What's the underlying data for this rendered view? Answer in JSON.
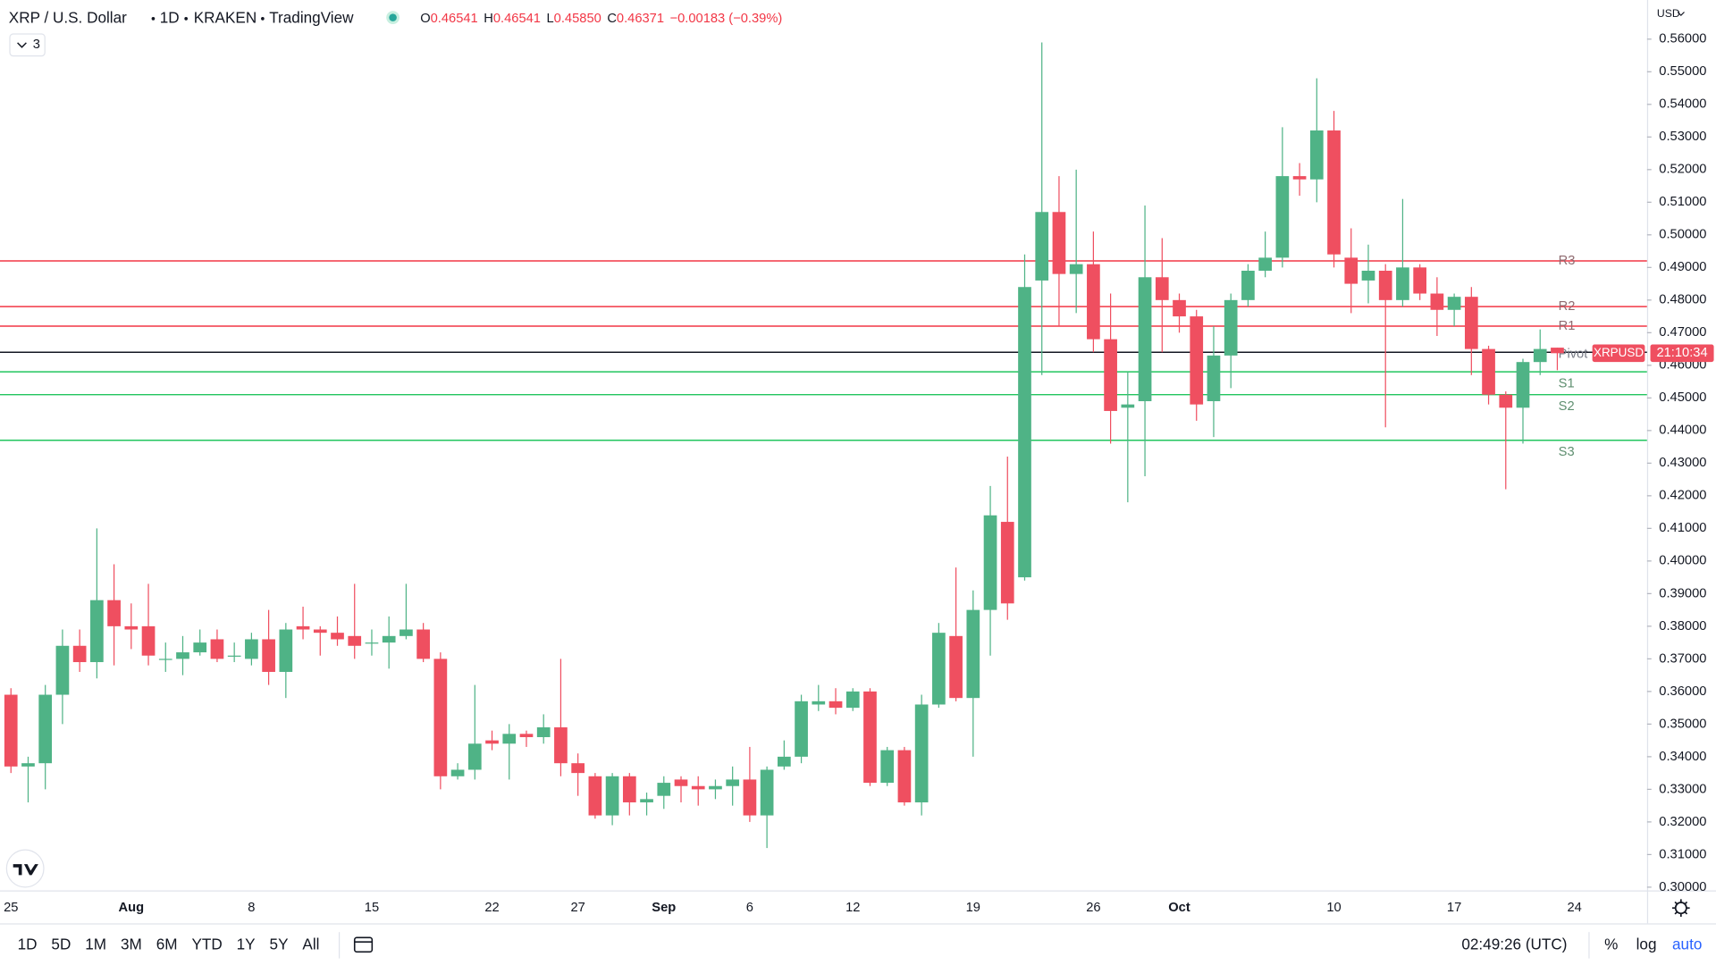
{
  "chart_data": {
    "type": "candlestick",
    "title": "XRP / U.S. Dollar",
    "interval": "1D",
    "exchange": "KRAKEN",
    "source": "TradingView",
    "legend": {
      "open_label": "O",
      "open": "0.46541",
      "high_label": "H",
      "high": "0.46541",
      "low_label": "L",
      "low": "0.45850",
      "close_label": "C",
      "close": "0.46371",
      "change": "−0.00183 (−0.39%)"
    },
    "indicator_count": "3",
    "currency": "USD",
    "symbol": "XRPUSD",
    "countdown": "21:10:34",
    "up_color": "#4fb386",
    "down_color": "#ef4f60",
    "x": [
      "07-25",
      "07-26",
      "07-27",
      "07-28",
      "07-29",
      "07-30",
      "07-31",
      "08-01",
      "08-02",
      "08-03",
      "08-04",
      "08-05",
      "08-06",
      "08-07",
      "08-08",
      "08-09",
      "08-10",
      "08-11",
      "08-12",
      "08-13",
      "08-14",
      "08-15",
      "08-16",
      "08-17",
      "08-18",
      "08-19",
      "08-20",
      "08-21",
      "08-22",
      "08-23",
      "08-24",
      "08-25",
      "08-26",
      "08-27",
      "08-28",
      "08-29",
      "08-30",
      "08-31",
      "09-01",
      "09-02",
      "09-03",
      "09-04",
      "09-05",
      "09-06",
      "09-07",
      "09-08",
      "09-09",
      "09-10",
      "09-11",
      "09-12",
      "09-13",
      "09-14",
      "09-15",
      "09-16",
      "09-17",
      "09-18",
      "09-19",
      "09-20",
      "09-21",
      "09-22",
      "09-23",
      "09-24",
      "09-25",
      "09-26",
      "09-27",
      "09-28",
      "09-29",
      "09-30",
      "10-01",
      "10-02",
      "10-03",
      "10-04",
      "10-05",
      "10-06",
      "10-07",
      "10-08",
      "10-09",
      "10-10",
      "10-11",
      "10-12",
      "10-13",
      "10-14",
      "10-15",
      "10-16",
      "10-17",
      "10-18",
      "10-19",
      "10-20",
      "10-21",
      "10-22",
      "10-23"
    ],
    "open": [
      0.359,
      0.337,
      0.338,
      0.359,
      0.374,
      0.369,
      0.388,
      0.38,
      0.38,
      0.37,
      0.37,
      0.372,
      0.376,
      0.371,
      0.37,
      0.376,
      0.366,
      0.38,
      0.379,
      0.378,
      0.377,
      0.375,
      0.375,
      0.377,
      0.379,
      0.37,
      0.334,
      0.336,
      0.345,
      0.344,
      0.347,
      0.346,
      0.349,
      0.338,
      0.334,
      0.322,
      0.334,
      0.326,
      0.328,
      0.333,
      0.331,
      0.33,
      0.331,
      0.333,
      0.322,
      0.337,
      0.34,
      0.356,
      0.357,
      0.355,
      0.36,
      0.332,
      0.342,
      0.326,
      0.356,
      0.377,
      0.358,
      0.385,
      0.412,
      0.395,
      0.486,
      0.507,
      0.488,
      0.491,
      0.468,
      0.447,
      0.449,
      0.487,
      0.48,
      0.475,
      0.449,
      0.463,
      0.48,
      0.489,
      0.493,
      0.518,
      0.517,
      0.532,
      0.493,
      0.486,
      0.489,
      0.48,
      0.49,
      0.482,
      0.477,
      0.481,
      0.465,
      0.451,
      0.447,
      0.461,
      0.46541
    ],
    "high": [
      0.361,
      0.34,
      0.362,
      0.379,
      0.379,
      0.41,
      0.399,
      0.387,
      0.393,
      0.375,
      0.377,
      0.379,
      0.379,
      0.375,
      0.378,
      0.385,
      0.381,
      0.386,
      0.38,
      0.383,
      0.393,
      0.379,
      0.383,
      0.393,
      0.381,
      0.372,
      0.338,
      0.362,
      0.348,
      0.35,
      0.348,
      0.353,
      0.37,
      0.341,
      0.335,
      0.335,
      0.335,
      0.329,
      0.334,
      0.334,
      0.334,
      0.333,
      0.337,
      0.343,
      0.337,
      0.345,
      0.359,
      0.362,
      0.361,
      0.361,
      0.361,
      0.343,
      0.343,
      0.359,
      0.381,
      0.398,
      0.391,
      0.423,
      0.432,
      0.494,
      0.559,
      0.518,
      0.52,
      0.501,
      0.482,
      0.458,
      0.509,
      0.499,
      0.482,
      0.477,
      0.472,
      0.482,
      0.491,
      0.501,
      0.533,
      0.522,
      0.548,
      0.538,
      0.502,
      0.497,
      0.491,
      0.511,
      0.491,
      0.487,
      0.482,
      0.484,
      0.466,
      0.452,
      0.462,
      0.471,
      0.46541
    ],
    "low": [
      0.335,
      0.326,
      0.33,
      0.35,
      0.366,
      0.364,
      0.368,
      0.373,
      0.368,
      0.366,
      0.365,
      0.371,
      0.369,
      0.369,
      0.368,
      0.362,
      0.358,
      0.376,
      0.371,
      0.374,
      0.37,
      0.371,
      0.367,
      0.376,
      0.369,
      0.33,
      0.333,
      0.333,
      0.342,
      0.333,
      0.343,
      0.344,
      0.334,
      0.328,
      0.321,
      0.319,
      0.322,
      0.322,
      0.324,
      0.326,
      0.325,
      0.327,
      0.325,
      0.32,
      0.312,
      0.336,
      0.338,
      0.354,
      0.353,
      0.354,
      0.331,
      0.331,
      0.325,
      0.322,
      0.355,
      0.357,
      0.34,
      0.371,
      0.382,
      0.394,
      0.457,
      0.472,
      0.476,
      0.464,
      0.436,
      0.418,
      0.426,
      0.464,
      0.47,
      0.443,
      0.438,
      0.453,
      0.478,
      0.487,
      0.49,
      0.512,
      0.51,
      0.49,
      0.476,
      0.479,
      0.441,
      0.478,
      0.48,
      0.469,
      0.472,
      0.457,
      0.448,
      0.422,
      0.436,
      0.457,
      0.4585
    ],
    "close": [
      0.337,
      0.338,
      0.359,
      0.374,
      0.369,
      0.388,
      0.38,
      0.379,
      0.371,
      0.37,
      0.372,
      0.375,
      0.37,
      0.371,
      0.376,
      0.366,
      0.379,
      0.379,
      0.378,
      0.376,
      0.374,
      0.375,
      0.377,
      0.379,
      0.37,
      0.334,
      0.336,
      0.344,
      0.344,
      0.347,
      0.346,
      0.349,
      0.338,
      0.335,
      0.322,
      0.334,
      0.326,
      0.327,
      0.332,
      0.331,
      0.33,
      0.331,
      0.333,
      0.322,
      0.336,
      0.34,
      0.357,
      0.357,
      0.355,
      0.36,
      0.332,
      0.342,
      0.326,
      0.356,
      0.378,
      0.358,
      0.385,
      0.414,
      0.387,
      0.484,
      0.507,
      0.488,
      0.491,
      0.468,
      0.446,
      0.448,
      0.487,
      0.48,
      0.475,
      0.448,
      0.463,
      0.48,
      0.489,
      0.493,
      0.518,
      0.517,
      0.532,
      0.494,
      0.485,
      0.489,
      0.48,
      0.49,
      0.482,
      0.477,
      0.481,
      0.465,
      0.451,
      0.447,
      0.461,
      0.465,
      0.46371
    ],
    "levels": [
      {
        "name": "R3",
        "value": 0.492,
        "color": "#f23645"
      },
      {
        "name": "R2",
        "value": 0.478,
        "color": "#f23645"
      },
      {
        "name": "R1",
        "value": 0.472,
        "color": "#f23645"
      },
      {
        "name": "Pivot",
        "value": 0.464,
        "color": "#131722"
      },
      {
        "name": "S1",
        "value": 0.458,
        "color": "#22c55e"
      },
      {
        "name": "S2",
        "value": 0.451,
        "color": "#22c55e"
      },
      {
        "name": "S3",
        "value": 0.437,
        "color": "#22c55e"
      }
    ],
    "ylim": [
      0.299,
      0.572
    ],
    "yticks": [
      {
        "value": 0.3,
        "label": "0.30000"
      },
      {
        "value": 0.31,
        "label": "0.31000"
      },
      {
        "value": 0.32,
        "label": "0.32000"
      },
      {
        "value": 0.33,
        "label": "0.33000"
      },
      {
        "value": 0.34,
        "label": "0.34000"
      },
      {
        "value": 0.35,
        "label": "0.35000"
      },
      {
        "value": 0.36,
        "label": "0.36000"
      },
      {
        "value": 0.37,
        "label": "0.37000"
      },
      {
        "value": 0.38,
        "label": "0.38000"
      },
      {
        "value": 0.39,
        "label": "0.39000"
      },
      {
        "value": 0.4,
        "label": "0.40000"
      },
      {
        "value": 0.41,
        "label": "0.41000"
      },
      {
        "value": 0.42,
        "label": "0.42000"
      },
      {
        "value": 0.43,
        "label": "0.43000"
      },
      {
        "value": 0.44,
        "label": "0.44000"
      },
      {
        "value": 0.45,
        "label": "0.45000"
      },
      {
        "value": 0.46,
        "label": "0.46000"
      },
      {
        "value": 0.47,
        "label": "0.47000"
      },
      {
        "value": 0.48,
        "label": "0.48000"
      },
      {
        "value": 0.49,
        "label": "0.49000"
      },
      {
        "value": 0.5,
        "label": "0.50000"
      },
      {
        "value": 0.51,
        "label": "0.51000"
      },
      {
        "value": 0.52,
        "label": "0.52000"
      },
      {
        "value": 0.53,
        "label": "0.53000"
      },
      {
        "value": 0.54,
        "label": "0.54000"
      },
      {
        "value": 0.55,
        "label": "0.55000"
      },
      {
        "value": 0.56,
        "label": "0.56000"
      }
    ],
    "xticks": [
      {
        "value": "07-25",
        "label": "25"
      },
      {
        "value": "08-01",
        "label": "Aug"
      },
      {
        "value": "08-08",
        "label": "8"
      },
      {
        "value": "08-15",
        "label": "15"
      },
      {
        "value": "08-22",
        "label": "22"
      },
      {
        "value": "08-27",
        "label": "27"
      },
      {
        "value": "09-01",
        "label": "Sep"
      },
      {
        "value": "09-06",
        "label": "6"
      },
      {
        "value": "09-12",
        "label": "12"
      },
      {
        "value": "09-19",
        "label": "19"
      },
      {
        "value": "09-26",
        "label": "26"
      },
      {
        "value": "10-01",
        "label": "Oct"
      },
      {
        "value": "10-10",
        "label": "10"
      },
      {
        "value": "10-17",
        "label": "17"
      },
      {
        "value": "10-24",
        "label": "24"
      }
    ],
    "grid": true,
    "ranges": [
      "1D",
      "5D",
      "1M",
      "3M",
      "6M",
      "YTD",
      "1Y",
      "5Y",
      "All"
    ],
    "clock": "02:49:26 (UTC)",
    "scale_buttons": [
      "%",
      "log",
      "auto"
    ]
  }
}
